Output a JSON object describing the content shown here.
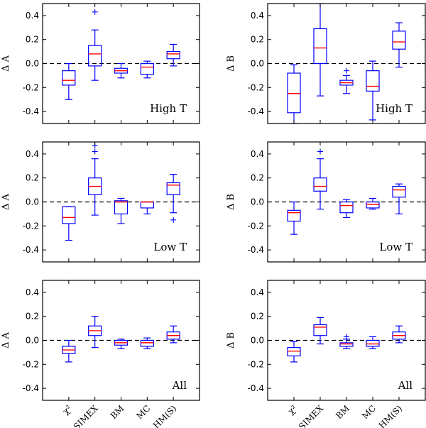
{
  "chart_data": [
    {
      "type": "box",
      "ylabel": "Δ A",
      "label": "High T",
      "ylim": [
        -0.5,
        0.5
      ],
      "yticks": [
        "0.4",
        "0.2",
        "0.0",
        "-0.2",
        "-0.4"
      ],
      "categories": [
        "χ²",
        "SIMEX",
        "BM",
        "MC",
        "HM(S)"
      ],
      "boxes": [
        {
          "whislo": -0.3,
          "q1": -0.18,
          "med": -0.14,
          "q3": -0.06,
          "whishi": 0.0,
          "fliers": []
        },
        {
          "whislo": -0.14,
          "q1": -0.02,
          "med": 0.08,
          "q3": 0.15,
          "whishi": 0.28,
          "fliers": [
            0.43
          ]
        },
        {
          "whislo": -0.12,
          "q1": -0.08,
          "med": -0.06,
          "q3": -0.04,
          "whishi": 0.0,
          "fliers": []
        },
        {
          "whislo": -0.12,
          "q1": -0.09,
          "med": -0.03,
          "q3": 0.0,
          "whishi": 0.02,
          "fliers": []
        },
        {
          "whislo": -0.02,
          "q1": 0.04,
          "med": 0.08,
          "q3": 0.1,
          "whishi": 0.16,
          "fliers": []
        }
      ]
    },
    {
      "type": "box",
      "ylabel": "Δ B",
      "label": "High T",
      "ylim": [
        -0.5,
        0.5
      ],
      "yticks": [
        "0.4",
        "0.2",
        "0.0",
        "-0.2",
        "-0.4"
      ],
      "categories": [
        "χ²",
        "SIMEX",
        "BM",
        "MC",
        "HM(S)"
      ],
      "boxes": [
        {
          "whislo": -0.5,
          "q1": -0.41,
          "med": -0.25,
          "q3": -0.08,
          "whishi": -0.01,
          "fliers": []
        },
        {
          "whislo": -0.27,
          "q1": 0.0,
          "med": 0.13,
          "q3": 0.29,
          "whishi": 0.5,
          "fliers": []
        },
        {
          "whislo": -0.25,
          "q1": -0.18,
          "med": -0.16,
          "q3": -0.14,
          "whishi": -0.1,
          "fliers": [
            -0.06
          ]
        },
        {
          "whislo": -0.47,
          "q1": -0.23,
          "med": -0.19,
          "q3": -0.06,
          "whishi": 0.02,
          "fliers": []
        },
        {
          "whislo": -0.03,
          "q1": 0.12,
          "med": 0.18,
          "q3": 0.27,
          "whishi": 0.34,
          "fliers": []
        }
      ]
    },
    {
      "type": "box",
      "ylabel": "Δ A",
      "label": "Low T",
      "ylim": [
        -0.5,
        0.5
      ],
      "yticks": [
        "0.4",
        "0.2",
        "0.0",
        "-0.2",
        "-0.4"
      ],
      "categories": [
        "χ²",
        "SIMEX",
        "BM",
        "MC",
        "HM(S)"
      ],
      "boxes": [
        {
          "whislo": -0.32,
          "q1": -0.18,
          "med": -0.13,
          "q3": -0.04,
          "whishi": -0.04,
          "fliers": []
        },
        {
          "whislo": -0.11,
          "q1": 0.06,
          "med": 0.13,
          "q3": 0.2,
          "whishi": 0.36,
          "fliers": [
            0.42,
            0.47
          ]
        },
        {
          "whislo": -0.18,
          "q1": -0.1,
          "med": 0.0,
          "q3": 0.01,
          "whishi": 0.03,
          "fliers": []
        },
        {
          "whislo": -0.1,
          "q1": -0.05,
          "med": 0.0,
          "q3": 0.0,
          "whishi": 0.0,
          "fliers": []
        },
        {
          "whislo": -0.09,
          "q1": 0.06,
          "med": 0.14,
          "q3": 0.16,
          "whishi": 0.23,
          "fliers": [
            -0.15
          ]
        }
      ]
    },
    {
      "type": "box",
      "ylabel": "Δ B",
      "label": "Low T",
      "ylim": [
        -0.5,
        0.5
      ],
      "yticks": [
        "0.4",
        "0.2",
        "0.0",
        "-0.2",
        "-0.4"
      ],
      "categories": [
        "χ²",
        "SIMEX",
        "BM",
        "MC",
        "HM(S)"
      ],
      "boxes": [
        {
          "whislo": -0.27,
          "q1": -0.16,
          "med": -0.09,
          "q3": -0.07,
          "whishi": 0.0,
          "fliers": []
        },
        {
          "whislo": -0.06,
          "q1": 0.09,
          "med": 0.13,
          "q3": 0.2,
          "whishi": 0.36,
          "fliers": [
            0.42
          ]
        },
        {
          "whislo": -0.13,
          "q1": -0.09,
          "med": -0.03,
          "q3": 0.0,
          "whishi": 0.02,
          "fliers": []
        },
        {
          "whislo": -0.06,
          "q1": -0.05,
          "med": -0.02,
          "q3": 0.0,
          "whishi": 0.03,
          "fliers": []
        },
        {
          "whislo": -0.1,
          "q1": 0.04,
          "med": 0.1,
          "q3": 0.13,
          "whishi": 0.15,
          "fliers": []
        }
      ]
    },
    {
      "type": "box",
      "ylabel": "Δ A",
      "label": "All",
      "ylim": [
        -0.5,
        0.5
      ],
      "yticks": [
        "0.4",
        "0.2",
        "0.0",
        "-0.2",
        "-0.4"
      ],
      "categories": [
        "χ²",
        "SIMEX",
        "BM",
        "MC",
        "HM(S)"
      ],
      "boxes": [
        {
          "whislo": -0.18,
          "q1": -0.11,
          "med": -0.08,
          "q3": -0.05,
          "whishi": 0.0,
          "fliers": []
        },
        {
          "whislo": -0.06,
          "q1": 0.04,
          "med": 0.08,
          "q3": 0.12,
          "whishi": 0.2,
          "fliers": []
        },
        {
          "whislo": -0.07,
          "q1": -0.04,
          "med": -0.02,
          "q3": 0.0,
          "whishi": 0.01,
          "fliers": []
        },
        {
          "whislo": -0.07,
          "q1": -0.05,
          "med": -0.02,
          "q3": 0.0,
          "whishi": 0.02,
          "fliers": []
        },
        {
          "whislo": -0.02,
          "q1": 0.01,
          "med": 0.04,
          "q3": 0.07,
          "whishi": 0.12,
          "fliers": []
        }
      ]
    },
    {
      "type": "box",
      "ylabel": "Δ B",
      "label": "All",
      "ylim": [
        -0.5,
        0.5
      ],
      "yticks": [
        "0.4",
        "0.2",
        "0.0",
        "-0.2",
        "-0.4"
      ],
      "categories": [
        "χ²",
        "SIMEX",
        "BM",
        "MC",
        "HM(S)"
      ],
      "boxes": [
        {
          "whislo": -0.18,
          "q1": -0.13,
          "med": -0.09,
          "q3": -0.06,
          "whishi": -0.01,
          "fliers": []
        },
        {
          "whislo": -0.03,
          "q1": 0.04,
          "med": 0.11,
          "q3": 0.13,
          "whishi": 0.19,
          "fliers": []
        },
        {
          "whislo": -0.07,
          "q1": -0.05,
          "med": -0.03,
          "q3": -0.02,
          "whishi": 0.01,
          "fliers": [
            0.03
          ]
        },
        {
          "whislo": -0.07,
          "q1": -0.05,
          "med": -0.03,
          "q3": 0.0,
          "whishi": 0.03,
          "fliers": []
        },
        {
          "whislo": -0.02,
          "q1": 0.01,
          "med": 0.04,
          "q3": 0.07,
          "whishi": 0.12,
          "fliers": []
        }
      ]
    }
  ]
}
